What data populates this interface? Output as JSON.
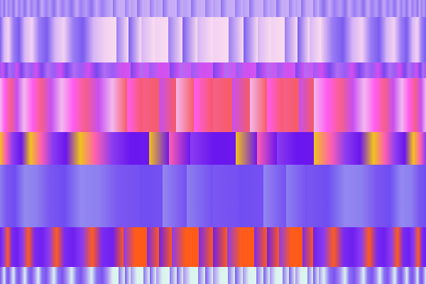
{
  "artwork": {
    "bands": [
      {
        "name": "top-thin-band",
        "colors": [
          "#9b7cf6",
          "#b79cf4",
          "#8d6ff2",
          "#c6a8f5"
        ],
        "center": "#c9b0f6"
      },
      {
        "name": "pale-pink-band",
        "colors": [
          "#7a5cf0",
          "#d8b6f6",
          "#f2d0f2",
          "#9b7cf4"
        ],
        "center": "#f9dcef"
      },
      {
        "name": "magenta-violet-band",
        "colors": [
          "#9a5cf5",
          "#d24ef0",
          "#7b46f0",
          "#b06cf4"
        ],
        "center": "#d055f0"
      },
      {
        "name": "coral-band",
        "colors": [
          "#f2b8ef",
          "#ff5cf0",
          "#f65f8a",
          "#c74ff1"
        ],
        "center": "#f75b66"
      },
      {
        "name": "yellow-violet-band",
        "colors": [
          "#f1c21b",
          "#ff5fb0",
          "#8b3cf0",
          "#6a16ee"
        ],
        "center": "#6b17ee"
      },
      {
        "name": "blue-violet-band",
        "colors": [
          "#8d80ef",
          "#7b56f0",
          "#6e4df2",
          "#9387f0"
        ],
        "center": "#7650f2"
      },
      {
        "name": "orange-violet-band",
        "colors": [
          "#6f1ff0",
          "#8b3cf0",
          "#ff5b1c",
          "#7a2af2"
        ],
        "center": "#ff5a16"
      },
      {
        "name": "bottom-mint-band",
        "colors": [
          "#7a54f2",
          "#a98df4",
          "#d9f3f0",
          "#8c6ff2"
        ],
        "center": "#dff6ee"
      }
    ]
  }
}
